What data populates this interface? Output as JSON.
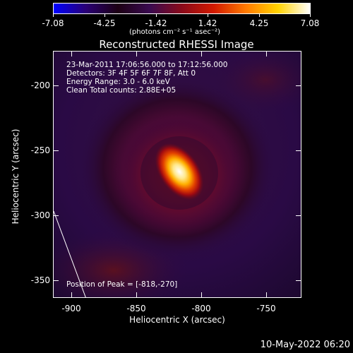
{
  "colorbar": {
    "ticks": [
      "-7.08",
      "-4.25",
      "-1.42",
      "1.42",
      "4.25",
      "7.08"
    ],
    "unit_label": "(photons cm⁻² s⁻¹ asec⁻²)",
    "colors": [
      "#0000ff",
      "#2a0076",
      "#1d0014",
      "#3a0a50",
      "#8a0a1a",
      "#d21a00",
      "#ff7a00",
      "#ffd300",
      "#ffffff"
    ]
  },
  "plot": {
    "title": "Reconstructed RHESSI Image",
    "info_lines": [
      "23-Mar-2011 17:06:56.000 to 17:12:56.000",
      "Detectors: 3F 4F 5F 6F 7F 8F, Att 0",
      "Energy Range: 3.0 - 6.0 keV",
      "Clean     Total counts: 2.88E+05"
    ],
    "peak_label": "Position of Peak = [-818,-270]",
    "x_axis": {
      "label": "Heliocentric X (arcsec)",
      "ticks": [
        "-900",
        "-850",
        "-800",
        "-750"
      ]
    },
    "y_axis": {
      "label": "Heliocentric Y (arcsec)",
      "ticks": [
        "-200",
        "-250",
        "-300",
        "-350"
      ]
    }
  },
  "timestamp": "10-May-2022 06:20"
}
